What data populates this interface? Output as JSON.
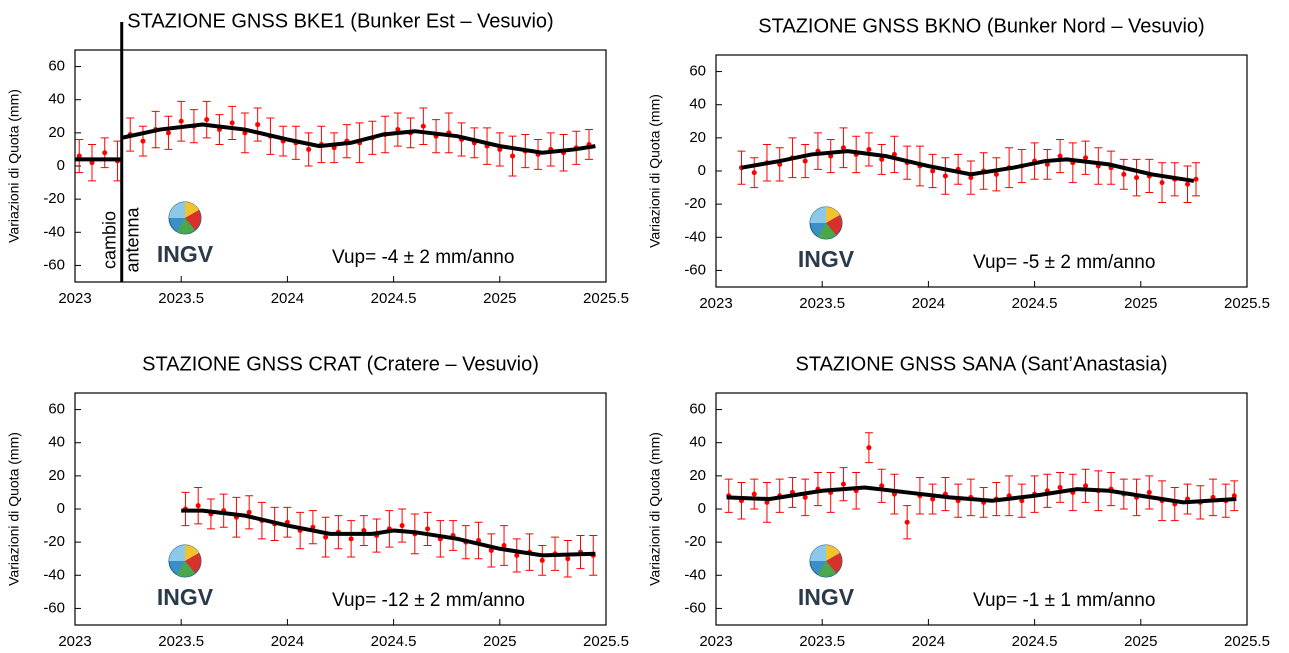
{
  "chart_data": [
    {
      "type": "scatter",
      "title": "STAZIONE GNSS BKE1 (Bunker Est – Vesuvio)",
      "y_label": "Variazioni di Quota (mm)",
      "annotation": "Vup= -4 ± 2 mm/anno",
      "logo_text": "INGV",
      "event_x": 2023.22,
      "event_labels": [
        "cambio",
        "antenna"
      ],
      "xlim": [
        2023,
        2025.5
      ],
      "xticks": [
        2023,
        2023.5,
        2024,
        2024.5,
        2025,
        2025.5
      ],
      "ylim": [
        -70,
        70
      ],
      "yticks": [
        -60,
        -40,
        -20,
        0,
        20,
        40,
        60
      ],
      "color": "#ff0000",
      "fit_color": "#000000",
      "x": [
        2023.02,
        2023.08,
        2023.14,
        2023.2,
        2023.26,
        2023.32,
        2023.38,
        2023.44,
        2023.5,
        2023.56,
        2023.62,
        2023.68,
        2023.74,
        2023.8,
        2023.86,
        2023.92,
        2023.98,
        2024.04,
        2024.1,
        2024.16,
        2024.22,
        2024.28,
        2024.34,
        2024.4,
        2024.46,
        2024.52,
        2024.58,
        2024.64,
        2024.7,
        2024.76,
        2024.82,
        2024.88,
        2024.94,
        2025,
        2025.06,
        2025.12,
        2025.18,
        2025.24,
        2025.3,
        2025.36,
        2025.42
      ],
      "values": [
        6,
        2,
        8,
        3,
        19,
        15,
        22,
        20,
        27,
        24,
        28,
        22,
        26,
        20,
        25,
        18,
        15,
        14,
        10,
        13,
        11,
        15,
        14,
        17,
        19,
        22,
        20,
        24,
        18,
        20,
        16,
        14,
        12,
        10,
        6,
        9,
        7,
        10,
        8,
        11,
        13
      ],
      "errors": [
        10,
        11,
        9,
        12,
        10,
        9,
        11,
        10,
        12,
        10,
        11,
        9,
        10,
        12,
        10,
        11,
        9,
        10,
        10,
        11,
        9,
        10,
        12,
        10,
        11,
        10,
        9,
        11,
        10,
        12,
        10,
        9,
        11,
        10,
        12,
        10,
        9,
        10,
        11,
        10,
        9
      ],
      "fit_x": [
        2023,
        2023.1,
        2023.22,
        null,
        2023.22,
        2023.4,
        2023.6,
        2023.8,
        2024,
        2024.15,
        2024.3,
        2024.45,
        2024.6,
        2024.8,
        2025,
        2025.2,
        2025.35,
        2025.45
      ],
      "fit_values": [
        4,
        4,
        4,
        null,
        17,
        22,
        25,
        22,
        16,
        12,
        14,
        19,
        21,
        18,
        12,
        8,
        10,
        12
      ]
    },
    {
      "type": "scatter",
      "title": "STAZIONE GNSS BKNO (Bunker Nord – Vesuvio)",
      "y_label": "Variazioni di Quota (mm)",
      "annotation": "Vup= -5 ± 2 mm/anno",
      "logo_text": "INGV",
      "xlim": [
        2023,
        2025.5
      ],
      "xticks": [
        2023,
        2023.5,
        2024,
        2024.5,
        2025,
        2025.5
      ],
      "ylim": [
        -70,
        70
      ],
      "yticks": [
        -60,
        -40,
        -20,
        0,
        20,
        40,
        60
      ],
      "color": "#ff0000",
      "fit_color": "#000000",
      "x": [
        2023.12,
        2023.18,
        2023.24,
        2023.3,
        2023.36,
        2023.42,
        2023.48,
        2023.54,
        2023.6,
        2023.66,
        2023.72,
        2023.78,
        2023.84,
        2023.9,
        2023.96,
        2024.02,
        2024.08,
        2024.14,
        2024.2,
        2024.26,
        2024.32,
        2024.38,
        2024.44,
        2024.5,
        2024.56,
        2024.62,
        2024.68,
        2024.74,
        2024.8,
        2024.86,
        2024.92,
        2024.98,
        2025.04,
        2025.1,
        2025.16,
        2025.22,
        2025.26
      ],
      "values": [
        2,
        -1,
        5,
        4,
        8,
        6,
        12,
        9,
        14,
        10,
        13,
        7,
        10,
        5,
        3,
        0,
        -3,
        1,
        -4,
        0,
        -2,
        2,
        3,
        6,
        4,
        9,
        5,
        8,
        3,
        2,
        -2,
        -4,
        -3,
        -7,
        -5,
        -8,
        -5
      ],
      "errors": [
        10,
        9,
        11,
        10,
        12,
        10,
        11,
        10,
        12,
        11,
        10,
        9,
        11,
        10,
        12,
        10,
        11,
        9,
        10,
        11,
        10,
        12,
        10,
        11,
        9,
        10,
        12,
        10,
        11,
        10,
        9,
        11,
        10,
        12,
        10,
        11,
        10
      ],
      "fit_x": [
        2023.12,
        2023.3,
        2023.45,
        2023.62,
        2023.8,
        2024,
        2024.2,
        2024.4,
        2024.55,
        2024.65,
        2024.85,
        2025.05,
        2025.25
      ],
      "fit_values": [
        2,
        6,
        10,
        12,
        9,
        3,
        -2,
        2,
        6,
        7,
        4,
        -2,
        -6
      ]
    },
    {
      "type": "scatter",
      "title": "STAZIONE GNSS CRAT (Cratere – Vesuvio)",
      "y_label": "Variazioni di Quota (mm)",
      "annotation": "Vup= -12 ± 2 mm/anno",
      "logo_text": "INGV",
      "xlim": [
        2023,
        2025.5
      ],
      "xticks": [
        2023,
        2023.5,
        2024,
        2024.5,
        2025,
        2025.5
      ],
      "ylim": [
        -70,
        70
      ],
      "yticks": [
        -60,
        -40,
        -20,
        0,
        20,
        40,
        60
      ],
      "color": "#ff0000",
      "fit_color": "#000000",
      "x": [
        2023.52,
        2023.58,
        2023.64,
        2023.7,
        2023.76,
        2023.82,
        2023.88,
        2023.94,
        2024,
        2024.06,
        2024.12,
        2024.18,
        2024.24,
        2024.3,
        2024.36,
        2024.42,
        2024.48,
        2024.54,
        2024.6,
        2024.66,
        2024.72,
        2024.78,
        2024.84,
        2024.9,
        2024.96,
        2025.02,
        2025.08,
        2025.14,
        2025.2,
        2025.26,
        2025.32,
        2025.38,
        2025.44
      ],
      "values": [
        0,
        2,
        -3,
        -1,
        -5,
        -2,
        -7,
        -9,
        -8,
        -13,
        -11,
        -17,
        -14,
        -18,
        -13,
        -16,
        -12,
        -10,
        -15,
        -12,
        -18,
        -16,
        -20,
        -19,
        -25,
        -22,
        -28,
        -26,
        -31,
        -27,
        -30,
        -26,
        -28
      ],
      "errors": [
        10,
        11,
        9,
        10,
        12,
        10,
        11,
        10,
        9,
        11,
        10,
        12,
        10,
        11,
        9,
        10,
        11,
        10,
        12,
        10,
        11,
        9,
        10,
        11,
        10,
        12,
        10,
        11,
        9,
        10,
        11,
        10,
        12
      ],
      "fit_x": [
        2023.5,
        2023.6,
        2023.8,
        2024,
        2024.2,
        2024.4,
        2024.5,
        2024.6,
        2024.8,
        2025,
        2025.2,
        2025.45
      ],
      "fit_values": [
        -1,
        -1,
        -4,
        -10,
        -15,
        -15,
        -13,
        -14,
        -18,
        -24,
        -28,
        -27
      ]
    },
    {
      "type": "scatter",
      "title": "STAZIONE GNSS SANA (Sant’Anastasia)",
      "y_label": "Variazioni di Quota (mm)",
      "annotation": "Vup= -1 ± 1 mm/anno",
      "logo_text": "INGV",
      "xlim": [
        2023,
        2025.5
      ],
      "xticks": [
        2023,
        2023.5,
        2024,
        2024.5,
        2025,
        2025.5
      ],
      "ylim": [
        -70,
        70
      ],
      "yticks": [
        -60,
        -40,
        -20,
        0,
        20,
        40,
        60
      ],
      "color": "#ff0000",
      "fit_color": "#000000",
      "x": [
        2023.06,
        2023.12,
        2023.18,
        2023.24,
        2023.3,
        2023.36,
        2023.42,
        2023.48,
        2023.54,
        2023.6,
        2023.66,
        2023.72,
        2023.78,
        2023.84,
        2023.9,
        2023.96,
        2024.02,
        2024.08,
        2024.14,
        2024.2,
        2024.26,
        2024.32,
        2024.38,
        2024.44,
        2024.5,
        2024.56,
        2024.62,
        2024.68,
        2024.74,
        2024.8,
        2024.86,
        2024.92,
        2024.98,
        2025.04,
        2025.1,
        2025.16,
        2025.22,
        2025.28,
        2025.34,
        2025.4,
        2025.44
      ],
      "values": [
        8,
        5,
        9,
        4,
        8,
        10,
        7,
        12,
        10,
        15,
        11,
        37,
        14,
        9,
        -8,
        8,
        6,
        9,
        5,
        7,
        4,
        6,
        8,
        5,
        9,
        11,
        13,
        10,
        14,
        11,
        12,
        9,
        7,
        10,
        5,
        3,
        6,
        4,
        7,
        5,
        8
      ],
      "errors": [
        10,
        11,
        9,
        12,
        10,
        9,
        11,
        10,
        12,
        10,
        11,
        9,
        10,
        12,
        10,
        11,
        9,
        10,
        10,
        11,
        9,
        10,
        12,
        10,
        11,
        10,
        9,
        11,
        10,
        12,
        10,
        9,
        11,
        10,
        12,
        10,
        9,
        10,
        11,
        10,
        9
      ],
      "fit_x": [
        2023.05,
        2023.25,
        2023.5,
        2023.7,
        2023.9,
        2024.1,
        2024.3,
        2024.5,
        2024.7,
        2024.85,
        2025,
        2025.2,
        2025.45
      ],
      "fit_values": [
        7,
        6,
        11,
        13,
        10,
        7,
        5,
        8,
        12,
        11,
        8,
        4,
        6
      ]
    }
  ]
}
